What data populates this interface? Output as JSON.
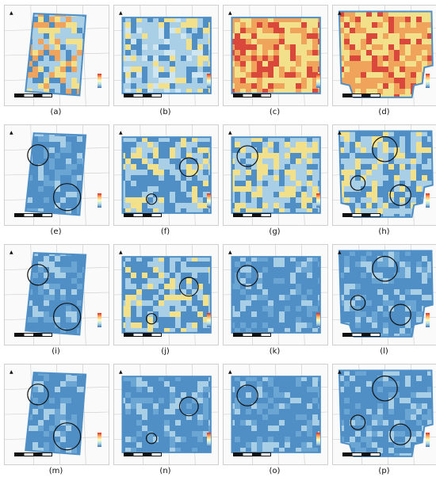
{
  "panels": [
    {
      "label": "(a)",
      "shape": "tilted",
      "palette": "warm-mix",
      "circles": []
    },
    {
      "label": "(b)",
      "shape": "rect",
      "palette": "cool-mix",
      "circles": []
    },
    {
      "label": "(c)",
      "shape": "rect",
      "palette": "warm",
      "circles": []
    },
    {
      "label": "(d)",
      "shape": "notched",
      "palette": "warm",
      "circles": []
    },
    {
      "label": "(e)",
      "shape": "tilted",
      "palette": "blue",
      "circles": [
        [
          0.32,
          0.3,
          0.1
        ],
        [
          0.6,
          0.72,
          0.13
        ]
      ]
    },
    {
      "label": "(f)",
      "shape": "rect",
      "palette": "blue-mix",
      "circles": [
        [
          0.72,
          0.42,
          0.09
        ],
        [
          0.36,
          0.74,
          0.05
        ]
      ]
    },
    {
      "label": "(g)",
      "shape": "rect",
      "palette": "yellow-mix",
      "circles": [
        [
          0.23,
          0.31,
          0.1
        ]
      ]
    },
    {
      "label": "(h)",
      "shape": "notched",
      "palette": "blue-mix",
      "circles": [
        [
          0.5,
          0.24,
          0.12
        ],
        [
          0.24,
          0.58,
          0.07
        ],
        [
          0.65,
          0.7,
          0.1
        ]
      ]
    },
    {
      "label": "(i)",
      "shape": "tilted",
      "palette": "blue",
      "circles": [
        [
          0.32,
          0.3,
          0.1
        ],
        [
          0.6,
          0.72,
          0.13
        ]
      ]
    },
    {
      "label": "(j)",
      "shape": "rect",
      "palette": "blue-mix",
      "circles": [
        [
          0.72,
          0.42,
          0.09
        ],
        [
          0.36,
          0.74,
          0.05
        ]
      ]
    },
    {
      "label": "(k)",
      "shape": "rect",
      "palette": "blue",
      "circles": [
        [
          0.23,
          0.31,
          0.1
        ]
      ]
    },
    {
      "label": "(l)",
      "shape": "notched",
      "palette": "blue",
      "circles": [
        [
          0.5,
          0.24,
          0.12
        ],
        [
          0.24,
          0.58,
          0.07
        ],
        [
          0.65,
          0.7,
          0.1
        ]
      ]
    },
    {
      "label": "(m)",
      "shape": "tilted",
      "palette": "blue",
      "circles": [
        [
          0.32,
          0.3,
          0.1
        ],
        [
          0.6,
          0.72,
          0.13
        ]
      ]
    },
    {
      "label": "(n)",
      "shape": "rect",
      "palette": "blue",
      "circles": [
        [
          0.72,
          0.42,
          0.09
        ],
        [
          0.36,
          0.74,
          0.05
        ]
      ]
    },
    {
      "label": "(o)",
      "shape": "rect",
      "palette": "blue",
      "circles": [
        [
          0.23,
          0.31,
          0.1
        ]
      ]
    },
    {
      "label": "(p)",
      "shape": "notched",
      "palette": "blue",
      "circles": [
        [
          0.5,
          0.24,
          0.12
        ],
        [
          0.24,
          0.58,
          0.07
        ],
        [
          0.65,
          0.7,
          0.1
        ]
      ]
    }
  ],
  "colors": {
    "blue": "#4f8fc6",
    "light_blue": "#a9cfe6",
    "yellow": "#f2e08a",
    "orange": "#f0a35a",
    "red": "#d9483b"
  }
}
